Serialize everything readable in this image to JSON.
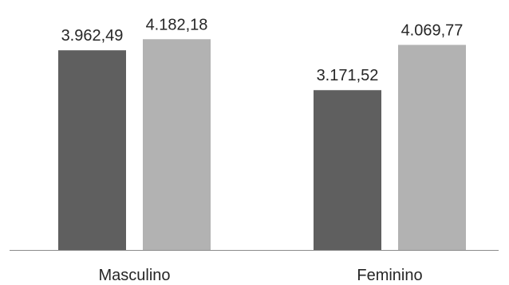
{
  "chart_data": {
    "type": "bar",
    "categories": [
      "Masculino",
      "Feminino"
    ],
    "series": [
      {
        "values": [
          3962.49,
          3171.52
        ],
        "value_labels": [
          "3.962,49",
          "3.171,52"
        ],
        "color": "#5f5f5f"
      },
      {
        "values": [
          4182.18,
          4069.77
        ],
        "value_labels": [
          "4.182,18",
          "4.069,77"
        ],
        "color": "#b2b2b2"
      }
    ],
    "title": "",
    "xlabel": "",
    "ylabel": "",
    "ylim": [
      0,
      4500
    ],
    "grid": false,
    "legend": "none"
  }
}
